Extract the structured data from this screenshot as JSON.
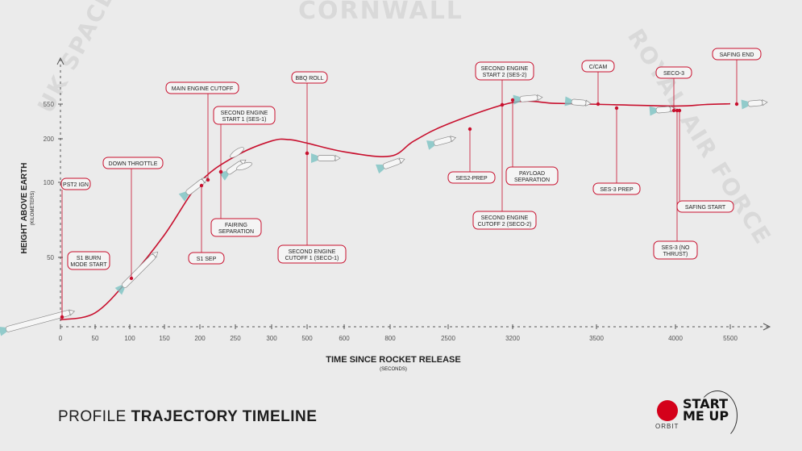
{
  "watermarks": {
    "top": "CORNWALL",
    "left": "UK SPACE AGENCY",
    "right": "ROYAL AIR FORCE"
  },
  "footer": {
    "title_light": "PROFILE",
    "title_bold": "TRAJECTORY TIMELINE"
  },
  "logo": {
    "line1": "START",
    "line2": "ME UP",
    "sub": "ORBIT"
  },
  "colors": {
    "curve": "#c8102e",
    "label_border": "#c8102e",
    "axis": "#555555",
    "text": "#222222",
    "background": "#ebebeb"
  },
  "chart_data": {
    "type": "line",
    "title": "PROFILE TRAJECTORY TIMELINE",
    "xlabel": "TIME SINCE ROCKET RELEASE",
    "xlabel_unit": "(SECONDS)",
    "ylabel": "HEIGHT ABOVE EARTH",
    "ylabel_unit": "(KILOMETERS)",
    "x_scale": "piecewise (non-linear)",
    "y_scale": "piecewise (non-linear)",
    "x_ticks": [
      "0",
      "50",
      "100",
      "150",
      "200",
      "250",
      "300",
      "500",
      "600",
      "800",
      "2500",
      "3200",
      "3500",
      "4000",
      "5500"
    ],
    "y_ticks": [
      "50",
      "100",
      "200",
      "550"
    ],
    "grid": false,
    "series": [
      {
        "values": [
          {
            "x": 0,
            "y": 5
          },
          {
            "x": 50,
            "y": 10
          },
          {
            "x": 100,
            "y": 35
          },
          {
            "x": 150,
            "y": 65
          },
          {
            "x": 200,
            "y": 100
          },
          {
            "x": 250,
            "y": 160
          },
          {
            "x": 300,
            "y": 195
          },
          {
            "x": 400,
            "y": 198
          },
          {
            "x": 500,
            "y": 190
          },
          {
            "x": 600,
            "y": 170
          },
          {
            "x": 800,
            "y": 160
          },
          {
            "x": 1500,
            "y": 195
          },
          {
            "x": 2500,
            "y": 350
          },
          {
            "x": 3200,
            "y": 560
          },
          {
            "x": 3350,
            "y": 555
          },
          {
            "x": 3500,
            "y": 548
          },
          {
            "x": 4000,
            "y": 530
          },
          {
            "x": 4800,
            "y": 545
          },
          {
            "x": 5500,
            "y": 552
          }
        ]
      }
    ],
    "events": [
      {
        "label": "PST2 IGN"
      },
      {
        "label": "S1 BURN MODE START"
      },
      {
        "label": "DOWN THROTTLE"
      },
      {
        "label": "MAIN ENGINE CUTOFF"
      },
      {
        "label": "S1 SEP"
      },
      {
        "label": "SECOND ENGINE START 1 (SES-1)"
      },
      {
        "label": "FAIRING SEPARATION"
      },
      {
        "label": "BBQ ROLL"
      },
      {
        "label": "SECOND ENGINE CUTOFF 1 (SECO-1)"
      },
      {
        "label": "SES2-PREP"
      },
      {
        "label": "SECOND ENGINE START 2 (SES-2)"
      },
      {
        "label": "SECOND ENGINE CUTOFF 2 (SECO-2)"
      },
      {
        "label": "PAYLOAD SEPARATION"
      },
      {
        "label": "C/CAM"
      },
      {
        "label": "SES-3 PREP"
      },
      {
        "label": "SECO-3"
      },
      {
        "label": "SES-3 (NO THRUST)"
      },
      {
        "label": "SAFING START"
      },
      {
        "label": "SAFING END"
      }
    ]
  }
}
